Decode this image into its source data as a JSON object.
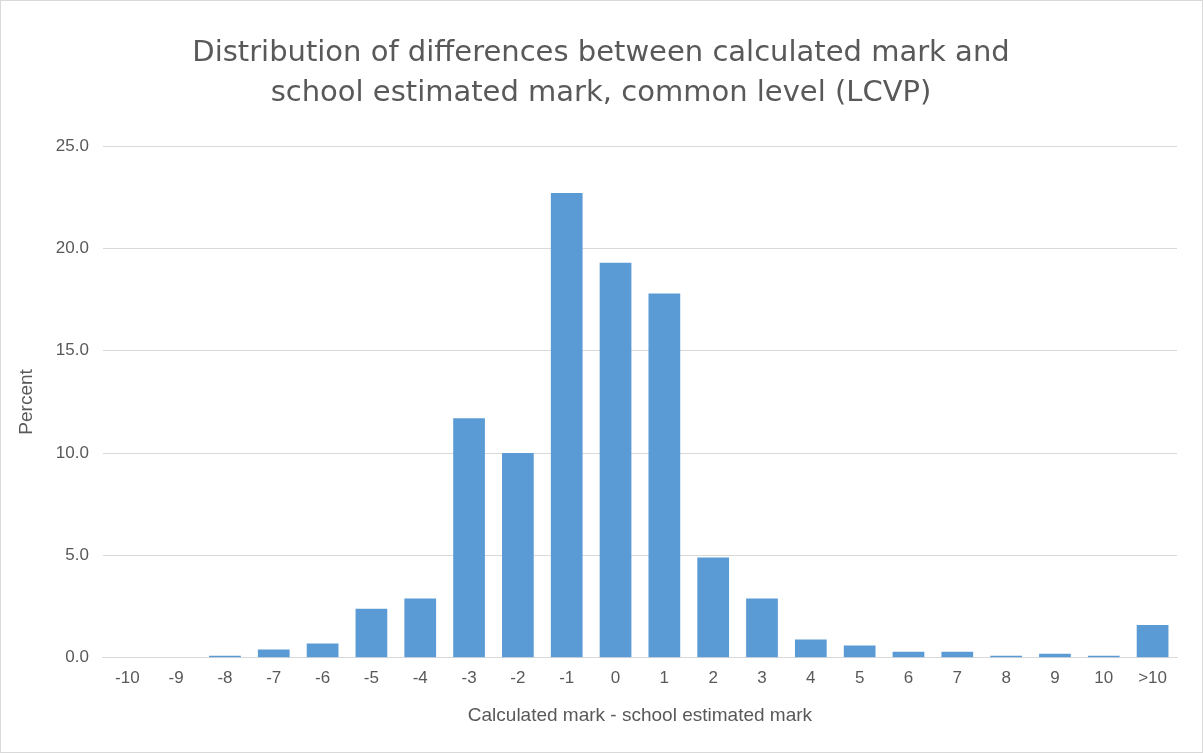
{
  "chart_data": {
    "type": "bar",
    "title": "Distribution of differences between calculated mark and school estimated mark, common level (LCVP)",
    "xlabel": "Calculated mark - school estimated mark",
    "ylabel": "Percent",
    "categories": [
      "-10",
      "-9",
      "-8",
      "-7",
      "-6",
      "-5",
      "-4",
      "-3",
      "-2",
      "-1",
      "0",
      "1",
      "2",
      "3",
      "4",
      "5",
      "6",
      "7",
      "8",
      "9",
      "10",
      ">10"
    ],
    "values": [
      0,
      0,
      0.1,
      0.4,
      0.7,
      2.4,
      2.9,
      11.7,
      10.0,
      22.7,
      19.3,
      17.8,
      4.9,
      2.9,
      0.9,
      0.6,
      0.3,
      0.3,
      0.1,
      0.2,
      0.1,
      1.6
    ],
    "color": "#5b9bd5",
    "ylim": [
      0,
      25
    ],
    "yticks": [
      {
        "value": 0,
        "label": "0.0"
      },
      {
        "value": 5,
        "label": "5.0"
      },
      {
        "value": 10,
        "label": "10.0"
      },
      {
        "value": 15,
        "label": "15.0"
      },
      {
        "value": 20,
        "label": "20.0"
      },
      {
        "value": 25,
        "label": "25.0"
      }
    ],
    "grid": "y",
    "legend": false
  }
}
